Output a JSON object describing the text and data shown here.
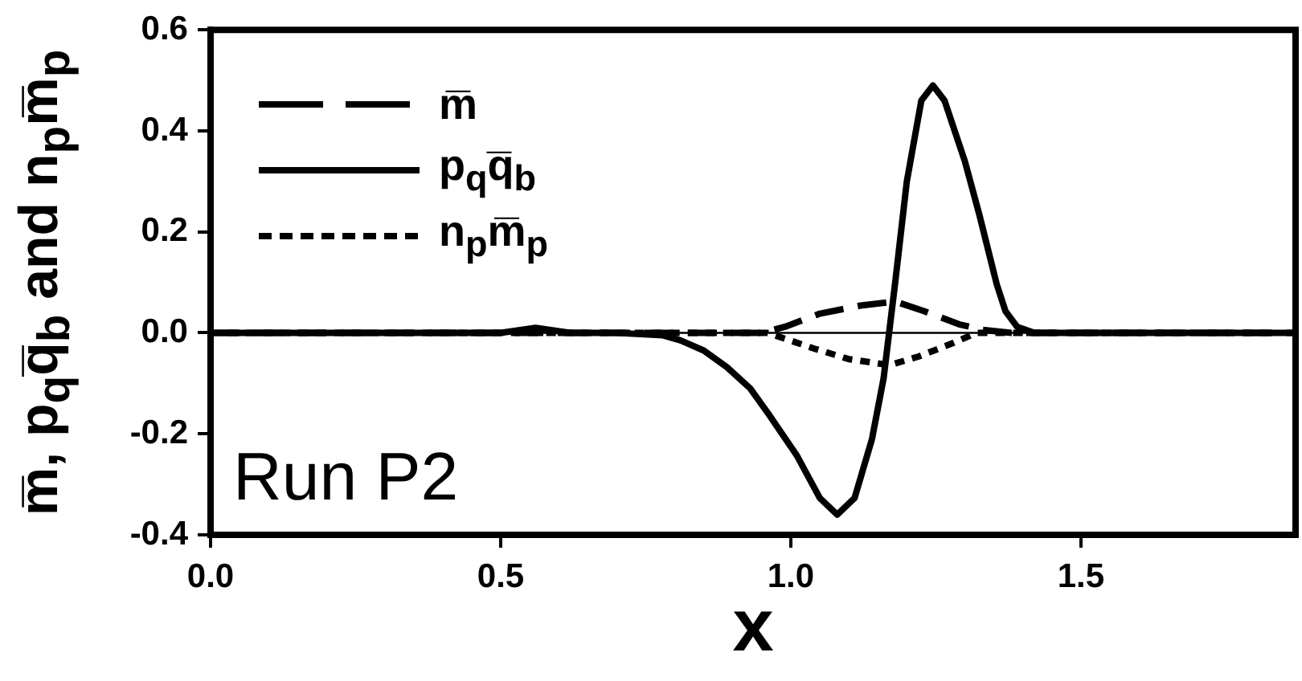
{
  "chart_data": {
    "type": "line",
    "series": [
      {
        "name": "m̅",
        "color": "#000000",
        "line_style": "dashed",
        "x": [
          0,
          0.95,
          0.99,
          1.05,
          1.12,
          1.18,
          1.23,
          1.29,
          1.33,
          1.38,
          1.87
        ],
        "values": [
          0,
          0,
          0.012,
          0.038,
          0.054,
          0.062,
          0.043,
          0.017,
          0.006,
          0,
          0
        ]
      },
      {
        "name": "p$_{q}$q̅$_{b}$",
        "color": "#000000",
        "line_style": "solid",
        "x": [
          0,
          0.2,
          0.4,
          0.5,
          0.56,
          0.62,
          0.7,
          0.78,
          0.81,
          0.85,
          0.89,
          0.93,
          0.96,
          1.01,
          1.05,
          1.08,
          1.11,
          1.14,
          1.16,
          1.18,
          1.2,
          1.225,
          1.245,
          1.265,
          1.3,
          1.325,
          1.355,
          1.37,
          1.39,
          1.42,
          1.6,
          1.87
        ],
        "values": [
          0,
          0,
          0,
          0,
          0.01,
          0,
          0,
          -0.005,
          -0.015,
          -0.035,
          -0.068,
          -0.11,
          -0.158,
          -0.242,
          -0.327,
          -0.36,
          -0.327,
          -0.21,
          -0.09,
          0.1,
          0.3,
          0.46,
          0.49,
          0.46,
          0.34,
          0.234,
          0.096,
          0.043,
          0.012,
          0,
          0,
          0
        ]
      },
      {
        "name": "n$_{p}$m̅$_{p}$",
        "color": "#000000",
        "line_style": "dotted",
        "x": [
          0.03,
          0.96,
          1.04,
          1.1,
          1.17,
          1.22,
          1.28,
          1.32,
          1.83
        ],
        "values": [
          0,
          0,
          -0.031,
          -0.052,
          -0.064,
          -0.047,
          -0.02,
          0,
          0
        ]
      }
    ],
    "xlim": [
      0,
      1.87
    ],
    "ylim": [
      -0.4,
      0.6
    ],
    "xticks": [
      {
        "value": 0,
        "label": "0.0"
      },
      0.5,
      {
        "value": 1,
        "label": "1.0"
      },
      1.5
    ],
    "yticks": [
      -0.4,
      -0.2,
      {
        "value": 0,
        "label": "0.0"
      },
      0.2,
      0.4,
      0.6
    ],
    "xlabel": "x",
    "ylabel": "m̅, p$_{q}$q̅$_{b}$ and n$_{p}$m̅$_{p}$",
    "legend": "top left",
    "ref_lines": [
      {
        "axis": "y",
        "value": 0
      }
    ],
    "annotations": [
      "Run P2"
    ]
  }
}
